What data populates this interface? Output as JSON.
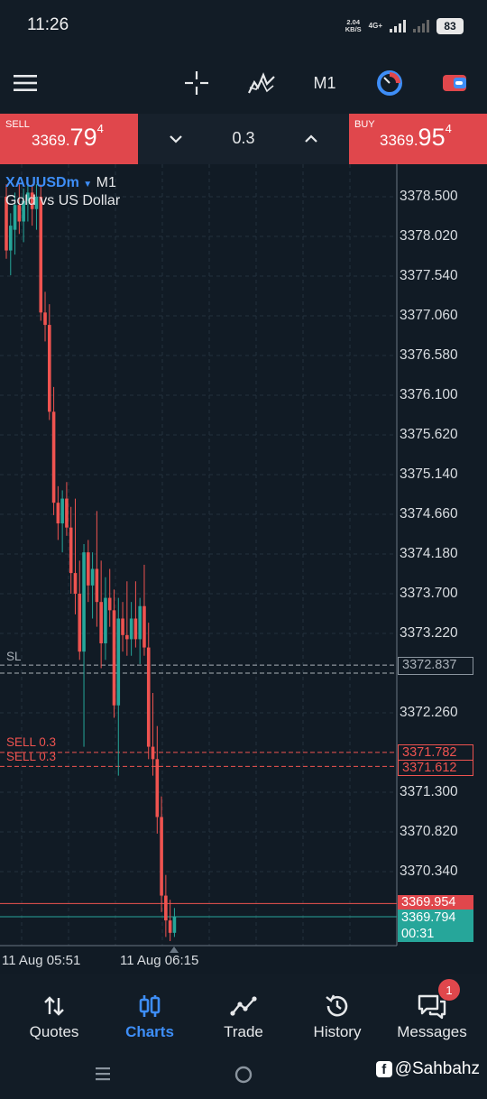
{
  "status": {
    "time": "11:26",
    "net_speed": "2.04",
    "net_unit": "KB/S",
    "net_type": "4G+",
    "battery": "83"
  },
  "toolbar": {
    "menu_icon": "hamburger-menu-icon",
    "crosshair_icon": "crosshair-icon",
    "indicators_icon": "indicators-icon",
    "timeframe": "M1",
    "objects_icon": "objects-icon",
    "account_icon": "account-icon"
  },
  "trade_panel": {
    "sell": {
      "label": "SELL",
      "price_small": "3369.",
      "price_big": "79",
      "price_sup": "4"
    },
    "buy": {
      "label": "BUY",
      "price_small": "3369.",
      "price_big": "95",
      "price_sup": "4"
    },
    "volume": "0.3"
  },
  "chart": {
    "symbol": "XAUUSDm",
    "timeframe": "M1",
    "description": "Gold vs US Dollar",
    "price_ticks": [
      "3378.500",
      "3378.020",
      "3377.540",
      "3377.060",
      "3376.580",
      "3376.100",
      "3375.620",
      "3375.140",
      "3374.660",
      "3374.180",
      "3373.700",
      "3373.220",
      "3372.260",
      "3371.300",
      "3370.820",
      "3370.340"
    ],
    "date_labels": [
      "11 Aug 05:51",
      "11 Aug 06:15"
    ],
    "lines": {
      "sl_label": "SL",
      "sl_price": "3372.837",
      "sell1_label": "SELL 0.3",
      "sell1_price": "3371.782",
      "sell2_label": "SELL 0.3",
      "sell2_price": "3371.612",
      "ask_price": "3369.954",
      "bid_price": "3369.794",
      "countdown": "00:31"
    },
    "colors": {
      "up": "#26a69a",
      "down": "#ef5350",
      "sell_line": "#ef5350",
      "bid_line": "#26a69a",
      "background": "#111b25"
    }
  },
  "chart_data": {
    "type": "candlestick",
    "symbol": "XAUUSDm",
    "timeframe": "M1",
    "ylim": [
      3369.5,
      3378.9
    ],
    "x_labels": [
      "11 Aug 05:51",
      "11 Aug 06:15"
    ],
    "candles": [
      {
        "o": 3378.5,
        "h": 3378.65,
        "l": 3377.75,
        "c": 3377.85
      },
      {
        "o": 3377.85,
        "h": 3378.3,
        "l": 3377.55,
        "c": 3378.15
      },
      {
        "o": 3378.1,
        "h": 3378.55,
        "l": 3377.8,
        "c": 3378.4
      },
      {
        "o": 3378.4,
        "h": 3378.65,
        "l": 3378.05,
        "c": 3378.2
      },
      {
        "o": 3378.2,
        "h": 3378.6,
        "l": 3377.95,
        "c": 3378.45
      },
      {
        "o": 3378.45,
        "h": 3378.65,
        "l": 3378.2,
        "c": 3378.55
      },
      {
        "o": 3378.55,
        "h": 3378.65,
        "l": 3378.15,
        "c": 3378.35
      },
      {
        "o": 3378.35,
        "h": 3378.65,
        "l": 3378.1,
        "c": 3378.5
      },
      {
        "o": 3378.5,
        "h": 3378.65,
        "l": 3377.0,
        "c": 3377.1
      },
      {
        "o": 3377.1,
        "h": 3377.35,
        "l": 3376.75,
        "c": 3376.95
      },
      {
        "o": 3376.95,
        "h": 3377.2,
        "l": 3375.8,
        "c": 3375.9
      },
      {
        "o": 3375.9,
        "h": 3376.2,
        "l": 3374.65,
        "c": 3374.8
      },
      {
        "o": 3374.8,
        "h": 3375.0,
        "l": 3374.35,
        "c": 3374.55
      },
      {
        "o": 3374.55,
        "h": 3374.95,
        "l": 3374.2,
        "c": 3374.85
      },
      {
        "o": 3374.85,
        "h": 3375.05,
        "l": 3374.4,
        "c": 3374.5
      },
      {
        "o": 3374.5,
        "h": 3374.75,
        "l": 3373.7,
        "c": 3373.95
      },
      {
        "o": 3373.95,
        "h": 3374.85,
        "l": 3373.45,
        "c": 3373.7
      },
      {
        "o": 3373.7,
        "h": 3374.1,
        "l": 3372.9,
        "c": 3373.0
      },
      {
        "o": 3373.0,
        "h": 3374.3,
        "l": 3371.85,
        "c": 3374.2
      },
      {
        "o": 3374.2,
        "h": 3374.35,
        "l": 3373.6,
        "c": 3373.8
      },
      {
        "o": 3373.8,
        "h": 3374.2,
        "l": 3373.4,
        "c": 3374.0
      },
      {
        "o": 3374.0,
        "h": 3374.7,
        "l": 3373.3,
        "c": 3373.6
      },
      {
        "o": 3373.6,
        "h": 3374.1,
        "l": 3372.8,
        "c": 3373.1
      },
      {
        "o": 3373.1,
        "h": 3373.9,
        "l": 3372.9,
        "c": 3373.65
      },
      {
        "o": 3373.65,
        "h": 3374.0,
        "l": 3373.3,
        "c": 3373.5
      },
      {
        "o": 3373.5,
        "h": 3373.75,
        "l": 3372.2,
        "c": 3372.35
      },
      {
        "o": 3372.35,
        "h": 3373.65,
        "l": 3371.5,
        "c": 3373.4
      },
      {
        "o": 3373.4,
        "h": 3373.6,
        "l": 3373.0,
        "c": 3373.2
      },
      {
        "o": 3373.2,
        "h": 3373.85,
        "l": 3372.95,
        "c": 3373.15
      },
      {
        "o": 3373.15,
        "h": 3373.6,
        "l": 3372.95,
        "c": 3373.4
      },
      {
        "o": 3373.4,
        "h": 3373.85,
        "l": 3373.05,
        "c": 3373.15
      },
      {
        "o": 3373.15,
        "h": 3373.65,
        "l": 3372.85,
        "c": 3373.55
      },
      {
        "o": 3373.55,
        "h": 3374.05,
        "l": 3372.95,
        "c": 3373.05
      },
      {
        "o": 3373.05,
        "h": 3373.35,
        "l": 3371.7,
        "c": 3371.85
      },
      {
        "o": 3371.85,
        "h": 3372.5,
        "l": 3371.5,
        "c": 3371.7
      },
      {
        "o": 3371.7,
        "h": 3372.1,
        "l": 3370.8,
        "c": 3371.0
      },
      {
        "o": 3371.0,
        "h": 3371.25,
        "l": 3369.85,
        "c": 3370.05
      },
      {
        "o": 3370.05,
        "h": 3370.3,
        "l": 3369.55,
        "c": 3369.75
      },
      {
        "o": 3369.75,
        "h": 3370.0,
        "l": 3369.5,
        "c": 3369.6
      },
      {
        "o": 3369.6,
        "h": 3369.9,
        "l": 3369.55,
        "c": 3369.79
      }
    ],
    "horizontal_lines": [
      {
        "label": "SL",
        "price": 3372.837
      },
      {
        "label": "SELL 0.3",
        "price": 3371.782
      },
      {
        "label": "SELL 0.3",
        "price": 3371.612
      },
      {
        "label": "",
        "price": 3369.954
      },
      {
        "label": "",
        "price": 3369.794
      }
    ]
  },
  "bottom_nav": {
    "items": [
      {
        "label": "Quotes",
        "icon": "quotes-icon"
      },
      {
        "label": "Charts",
        "icon": "charts-icon"
      },
      {
        "label": "Trade",
        "icon": "trade-icon"
      },
      {
        "label": "History",
        "icon": "history-icon"
      },
      {
        "label": "Messages",
        "icon": "messages-icon"
      }
    ],
    "messages_badge": "1"
  },
  "watermark": {
    "text": "@Sahbahz",
    "icon": "facebook-icon"
  }
}
